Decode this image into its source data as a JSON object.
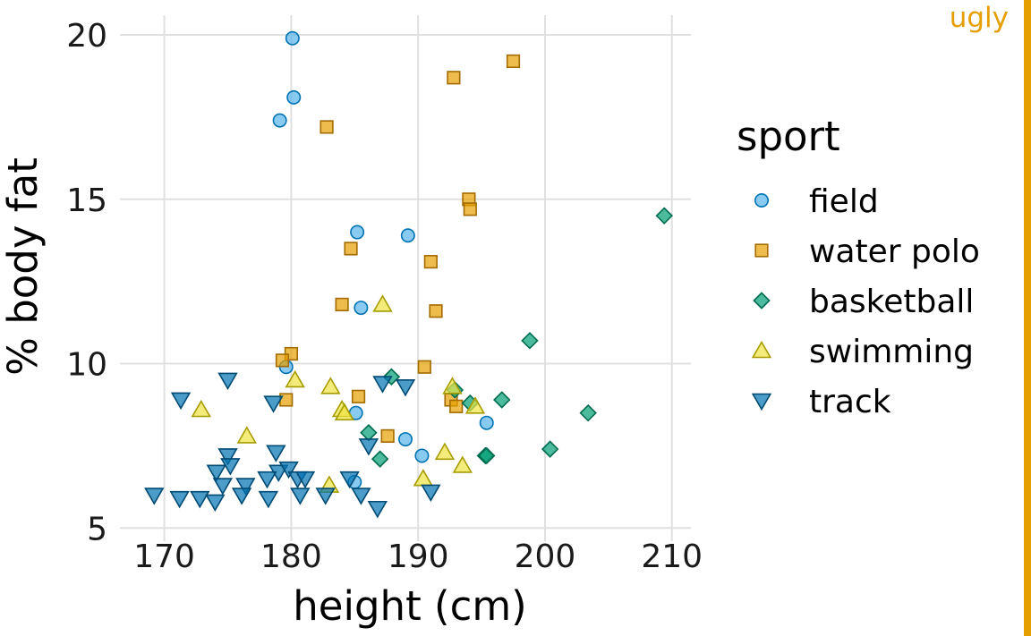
{
  "chart_data": {
    "type": "scatter",
    "xlabel": "height (cm)",
    "ylabel": "% body fat",
    "xlim": [
      166.5,
      211.5
    ],
    "ylim": [
      4.6,
      20.6
    ],
    "x_ticks": [
      170,
      180,
      190,
      200,
      210
    ],
    "y_ticks": [
      5,
      10,
      15,
      20
    ],
    "grid": true,
    "legend": {
      "title": "sport",
      "position": "right"
    },
    "series": [
      {
        "name": "field",
        "marker": "circle",
        "fill": "#56B4E9",
        "stroke": "#0072B2",
        "points": [
          [
            180.1,
            19.9
          ],
          [
            180.2,
            18.1
          ],
          [
            179.1,
            17.4
          ],
          [
            185.2,
            14.0
          ],
          [
            189.2,
            13.9
          ],
          [
            185.5,
            11.7
          ],
          [
            179.6,
            9.9
          ],
          [
            185.1,
            8.5
          ],
          [
            189.0,
            7.7
          ],
          [
            190.3,
            7.2
          ],
          [
            195.4,
            8.2
          ],
          [
            185.0,
            6.4
          ]
        ]
      },
      {
        "name": "water polo",
        "marker": "square",
        "fill": "#E69F00",
        "stroke": "#A36B00",
        "points": [
          [
            197.5,
            19.2
          ],
          [
            192.8,
            18.7
          ],
          [
            182.8,
            17.2
          ],
          [
            194.0,
            15.0
          ],
          [
            194.1,
            14.7
          ],
          [
            184.7,
            13.5
          ],
          [
            191.0,
            13.1
          ],
          [
            191.4,
            11.6
          ],
          [
            184.0,
            11.8
          ],
          [
            180.0,
            10.3
          ],
          [
            179.3,
            10.1
          ],
          [
            190.5,
            9.9
          ],
          [
            185.3,
            9.0
          ],
          [
            179.6,
            8.9
          ],
          [
            192.6,
            8.9
          ],
          [
            193.0,
            8.7
          ],
          [
            187.6,
            7.8
          ]
        ]
      },
      {
        "name": "basketball",
        "marker": "diamond",
        "fill": "#009E73",
        "stroke": "#006B4E",
        "points": [
          [
            209.4,
            14.5
          ],
          [
            198.8,
            10.7
          ],
          [
            196.6,
            8.9
          ],
          [
            203.4,
            8.5
          ],
          [
            194.1,
            8.8
          ],
          [
            192.9,
            9.2
          ],
          [
            187.9,
            9.6
          ],
          [
            186.1,
            7.9
          ],
          [
            187.0,
            7.1
          ],
          [
            195.3,
            7.2
          ],
          [
            195.4,
            7.2
          ],
          [
            200.4,
            7.4
          ]
        ]
      },
      {
        "name": "swimming",
        "marker": "triangle-up",
        "fill": "#F0E442",
        "stroke": "#A69C00",
        "points": [
          [
            187.2,
            11.8
          ],
          [
            180.3,
            9.5
          ],
          [
            183.1,
            9.3
          ],
          [
            184.0,
            8.6
          ],
          [
            184.2,
            8.5
          ],
          [
            172.9,
            8.6
          ],
          [
            176.5,
            7.8
          ],
          [
            192.7,
            9.3
          ],
          [
            194.5,
            8.7
          ],
          [
            192.1,
            7.3
          ],
          [
            193.5,
            6.9
          ],
          [
            190.4,
            6.5
          ],
          [
            183.0,
            6.3
          ]
        ]
      },
      {
        "name": "track",
        "marker": "triangle-down",
        "fill": "#0072B2",
        "stroke": "#004A73",
        "points": [
          [
            175.0,
            9.5
          ],
          [
            171.3,
            8.9
          ],
          [
            178.6,
            8.8
          ],
          [
            187.2,
            9.4
          ],
          [
            189.0,
            9.3
          ],
          [
            175.0,
            7.2
          ],
          [
            175.2,
            6.9
          ],
          [
            174.1,
            6.7
          ],
          [
            178.8,
            7.3
          ],
          [
            179.0,
            6.7
          ],
          [
            179.8,
            6.8
          ],
          [
            178.1,
            6.5
          ],
          [
            180.5,
            6.5
          ],
          [
            181.1,
            6.5
          ],
          [
            184.6,
            6.5
          ],
          [
            174.6,
            6.3
          ],
          [
            176.4,
            6.3
          ],
          [
            169.2,
            6.0
          ],
          [
            171.2,
            5.9
          ],
          [
            172.8,
            5.9
          ],
          [
            176.1,
            6.0
          ],
          [
            178.2,
            5.9
          ],
          [
            180.7,
            6.0
          ],
          [
            182.7,
            6.0
          ],
          [
            185.5,
            6.0
          ],
          [
            174.0,
            5.8
          ],
          [
            186.8,
            5.6
          ],
          [
            186.1,
            7.5
          ],
          [
            191.0,
            6.1
          ]
        ]
      }
    ]
  },
  "tag": {
    "text": "ugly",
    "color": "#E69F00"
  }
}
